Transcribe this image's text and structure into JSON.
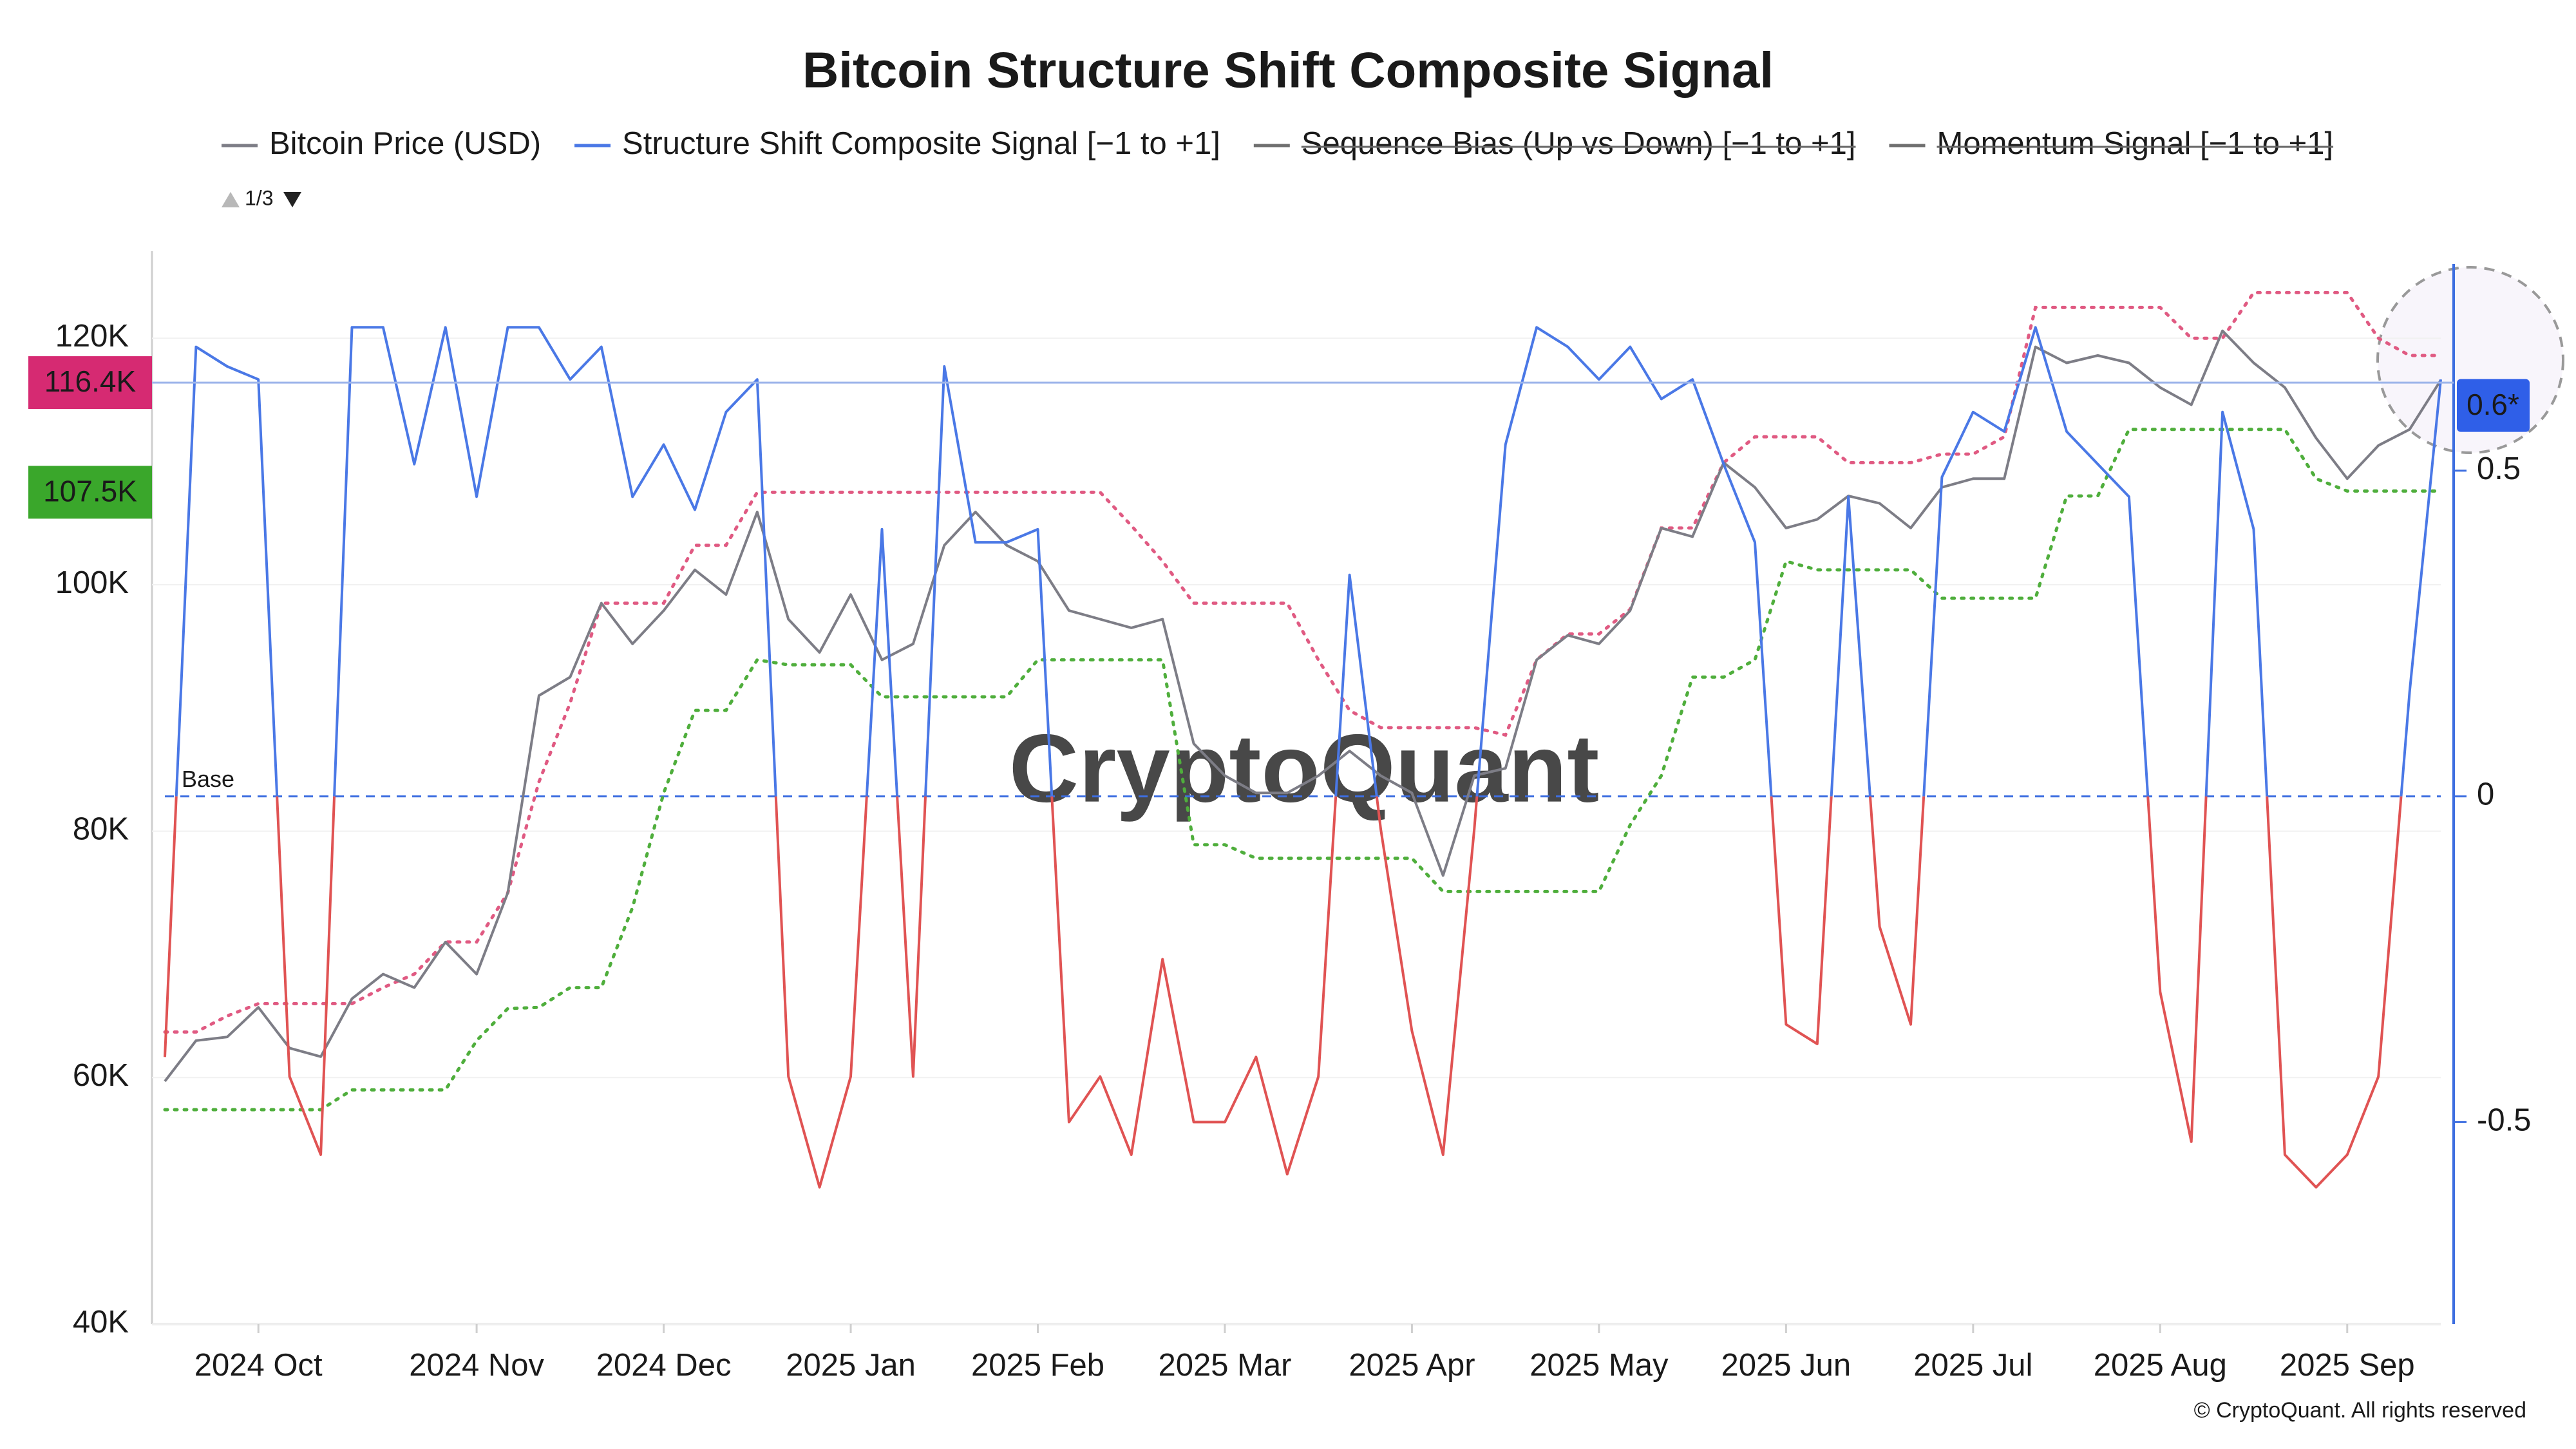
{
  "chart_data": {
    "type": "line",
    "title": "Bitcoin Structure Shift Composite Signal",
    "legend_page": "1/3",
    "watermark": "CryptoQuant",
    "credit": "© CryptoQuant. All rights reserved",
    "baseline": {
      "value": 0,
      "label": "Base",
      "axis": "y2",
      "color": "#3d6ee0"
    },
    "categories": [
      null,
      null,
      null,
      "2024 Oct",
      null,
      null,
      null,
      null,
      null,
      null,
      "2024 Nov",
      null,
      null,
      null,
      null,
      null,
      "2024 Dec",
      null,
      null,
      null,
      null,
      null,
      "2025 Jan",
      null,
      null,
      null,
      null,
      null,
      "2025 Feb",
      null,
      null,
      null,
      null,
      null,
      "2025 Mar",
      null,
      null,
      null,
      null,
      null,
      "2025 Apr",
      null,
      null,
      null,
      null,
      null,
      "2025 May",
      null,
      null,
      null,
      null,
      null,
      "2025 Jun",
      null,
      null,
      null,
      null,
      null,
      "2025 Jul",
      null,
      null,
      null,
      null,
      null,
      "2025 Aug",
      null,
      null,
      null,
      null,
      null,
      "2025 Sep",
      null,
      null,
      null
    ],
    "ylim": [
      40000,
      126700
    ],
    "yticks": [
      {
        "value": 40000,
        "label": "40K"
      },
      {
        "value": 60000,
        "label": "60K"
      },
      {
        "value": 80000,
        "label": "80K"
      },
      {
        "value": 100000,
        "label": "100K"
      },
      {
        "value": 120000,
        "label": "120K"
      }
    ],
    "y2lim": [
      -0.81,
      0.83
    ],
    "y2ticks": [
      -0.5,
      0,
      0.5
    ],
    "grid": true,
    "legend": "top",
    "series": [
      {
        "name": "Bitcoin Price (USD)",
        "color": "#7d7d86",
        "values": [
          59700,
          63000,
          63300,
          65700,
          62400,
          61700,
          66400,
          68400,
          67300,
          71000,
          68400,
          75000,
          91000,
          92500,
          98500,
          95200,
          97900,
          101200,
          99200,
          105900,
          97200,
          94500,
          99200,
          93900,
          95200,
          103200,
          105900,
          103200,
          101900,
          97900,
          97200,
          96500,
          97200,
          87100,
          84500,
          83100,
          83100,
          84500,
          86500,
          84500,
          83100,
          76400,
          84500,
          85100,
          93900,
          95900,
          95200,
          97900,
          104600,
          103900,
          109900,
          107900,
          104600,
          105300,
          107200,
          106600,
          104600,
          107900,
          108600,
          108600,
          119300,
          118000,
          118600,
          118000,
          116000,
          114600,
          120600,
          118000,
          116000,
          111900,
          108600,
          111300,
          112600,
          116600
        ]
      },
      {
        "name": "Structure Shift Composite Signal [−1 to +1]",
        "color": "#4a78e6",
        "negative_color": "#e05353",
        "axis": "y2",
        "values": [
          -0.4,
          0.69,
          0.66,
          0.64,
          -0.43,
          -0.55,
          0.72,
          0.72,
          0.51,
          0.72,
          0.46,
          0.72,
          0.72,
          0.64,
          0.69,
          0.46,
          0.54,
          0.44,
          0.59,
          0.64,
          -0.43,
          -0.6,
          -0.43,
          0.41,
          -0.43,
          0.66,
          0.39,
          0.39,
          0.41,
          -0.5,
          -0.43,
          -0.55,
          -0.25,
          -0.5,
          -0.5,
          -0.4,
          -0.58,
          -0.43,
          0.34,
          -0.05,
          -0.36,
          -0.55,
          -0.05,
          0.54,
          0.72,
          0.69,
          0.64,
          0.69,
          0.61,
          0.64,
          0.51,
          0.39,
          -0.35,
          -0.38,
          0.46,
          -0.2,
          -0.35,
          0.49,
          0.59,
          0.56,
          0.72,
          0.56,
          0.51,
          0.46,
          -0.3,
          -0.53,
          0.59,
          0.41,
          -0.55,
          -0.6,
          -0.55,
          -0.43,
          0.16,
          0.64
        ]
      },
      {
        "name": "Sequence Bias (Up vs Down) [−1 to +1]",
        "color": "#6f6f6f",
        "visible": false
      },
      {
        "name": "Momentum Signal [−1 to +1]",
        "color": "#6f6f6f",
        "visible": false
      },
      {
        "color": "#e05a82",
        "dash": "dotted",
        "values": [
          63700,
          63700,
          65000,
          66000,
          66000,
          66000,
          66000,
          67300,
          68400,
          71000,
          71000,
          75000,
          84000,
          90400,
          98500,
          98500,
          98500,
          103200,
          103200,
          107500,
          107500,
          107500,
          107500,
          107500,
          107500,
          107500,
          107500,
          107500,
          107500,
          107500,
          107500,
          104800,
          101900,
          98500,
          98500,
          98500,
          98500,
          93900,
          89800,
          88400,
          88400,
          88400,
          88400,
          87800,
          93900,
          96000,
          96000,
          98000,
          104600,
          104600,
          109900,
          112000,
          112000,
          112000,
          109900,
          109900,
          109900,
          110600,
          110600,
          112000,
          122500,
          122500,
          122500,
          122500,
          122500,
          120000,
          120000,
          123700,
          123700,
          123700,
          123700,
          120000,
          118600,
          118600
        ]
      },
      {
        "color": "#4fae3c",
        "dash": "dotted",
        "values": [
          57400,
          57400,
          57400,
          57400,
          57400,
          57400,
          59000,
          59000,
          59000,
          59000,
          63000,
          65600,
          65700,
          67300,
          67300,
          73800,
          83100,
          89800,
          89800,
          93900,
          93500,
          93500,
          93500,
          90900,
          90900,
          90900,
          90900,
          90900,
          93900,
          93900,
          93900,
          93900,
          93900,
          78900,
          78900,
          77800,
          77800,
          77800,
          77800,
          77800,
          77800,
          75100,
          75100,
          75100,
          75100,
          75100,
          75100,
          80500,
          84500,
          92500,
          92500,
          93900,
          101900,
          101200,
          101200,
          101200,
          101200,
          98900,
          98900,
          98900,
          98900,
          107200,
          107200,
          112600,
          112600,
          112600,
          112600,
          112600,
          112600,
          108600,
          107600,
          107600,
          107600,
          107600
        ]
      }
    ],
    "badges": [
      {
        "value": 116400,
        "label": "116.4K",
        "color": "#d62a72",
        "line": true
      },
      {
        "value": 107500,
        "label": "107.5K",
        "color": "#3aa72b"
      },
      {
        "value": 0.6,
        "label": "0.6*",
        "color": "#2f5fe8",
        "axis": "y2"
      }
    ]
  }
}
